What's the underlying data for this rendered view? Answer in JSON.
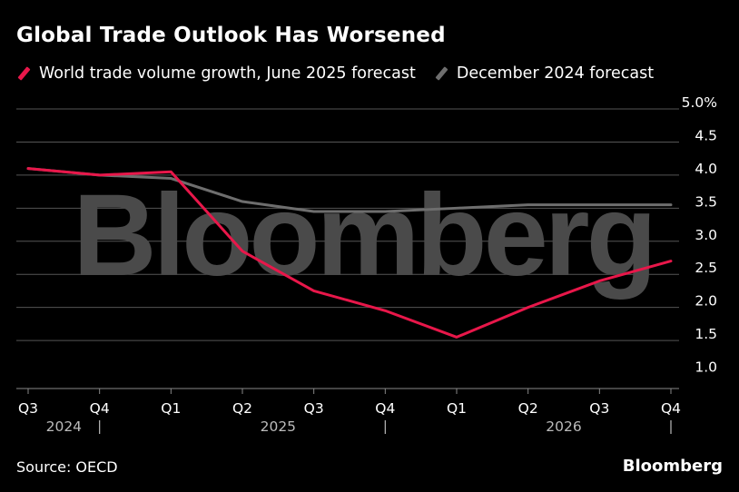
{
  "title": "Global Trade Outlook Has Worsened",
  "source": "Source: OECD",
  "brand": "Bloomberg",
  "watermark": "Bloomberg",
  "colors": {
    "june": "#e8174a",
    "dec": "#6e6e6e",
    "grid": "#555555",
    "watermark": "#4a4a4a"
  },
  "chart_data": {
    "type": "line",
    "title": "Global Trade Outlook Has Worsened",
    "ylim": [
      1.0,
      5.0
    ],
    "y_ticks": [
      "1.0",
      "1.5",
      "2.0",
      "2.5",
      "3.0",
      "3.5",
      "4.0",
      "4.5",
      "5.0%"
    ],
    "y_tick_values": [
      1.0,
      1.5,
      2.0,
      2.5,
      3.0,
      3.5,
      4.0,
      4.5,
      5.0
    ],
    "y_axis_side": "right",
    "grid": true,
    "legend_position": "top-left",
    "categories": [
      "Q3",
      "Q4",
      "Q1",
      "Q2",
      "Q3",
      "Q4",
      "Q1",
      "Q2",
      "Q3",
      "Q4"
    ],
    "years": [
      {
        "label": "2024",
        "start": 0
      },
      {
        "label": "2025",
        "start": 2
      },
      {
        "label": "2026",
        "start": 6
      }
    ],
    "series": [
      {
        "name": "World trade volume growth, June 2025 forecast",
        "color": "#e8174a",
        "values": [
          4.1,
          4.0,
          4.05,
          2.85,
          2.25,
          1.95,
          1.55,
          2.0,
          2.4,
          2.7
        ]
      },
      {
        "name": "December 2024 forecast",
        "color": "#6e6e6e",
        "values": [
          4.1,
          4.0,
          3.95,
          3.6,
          3.45,
          3.45,
          3.5,
          3.55,
          3.55,
          3.55
        ]
      }
    ]
  }
}
